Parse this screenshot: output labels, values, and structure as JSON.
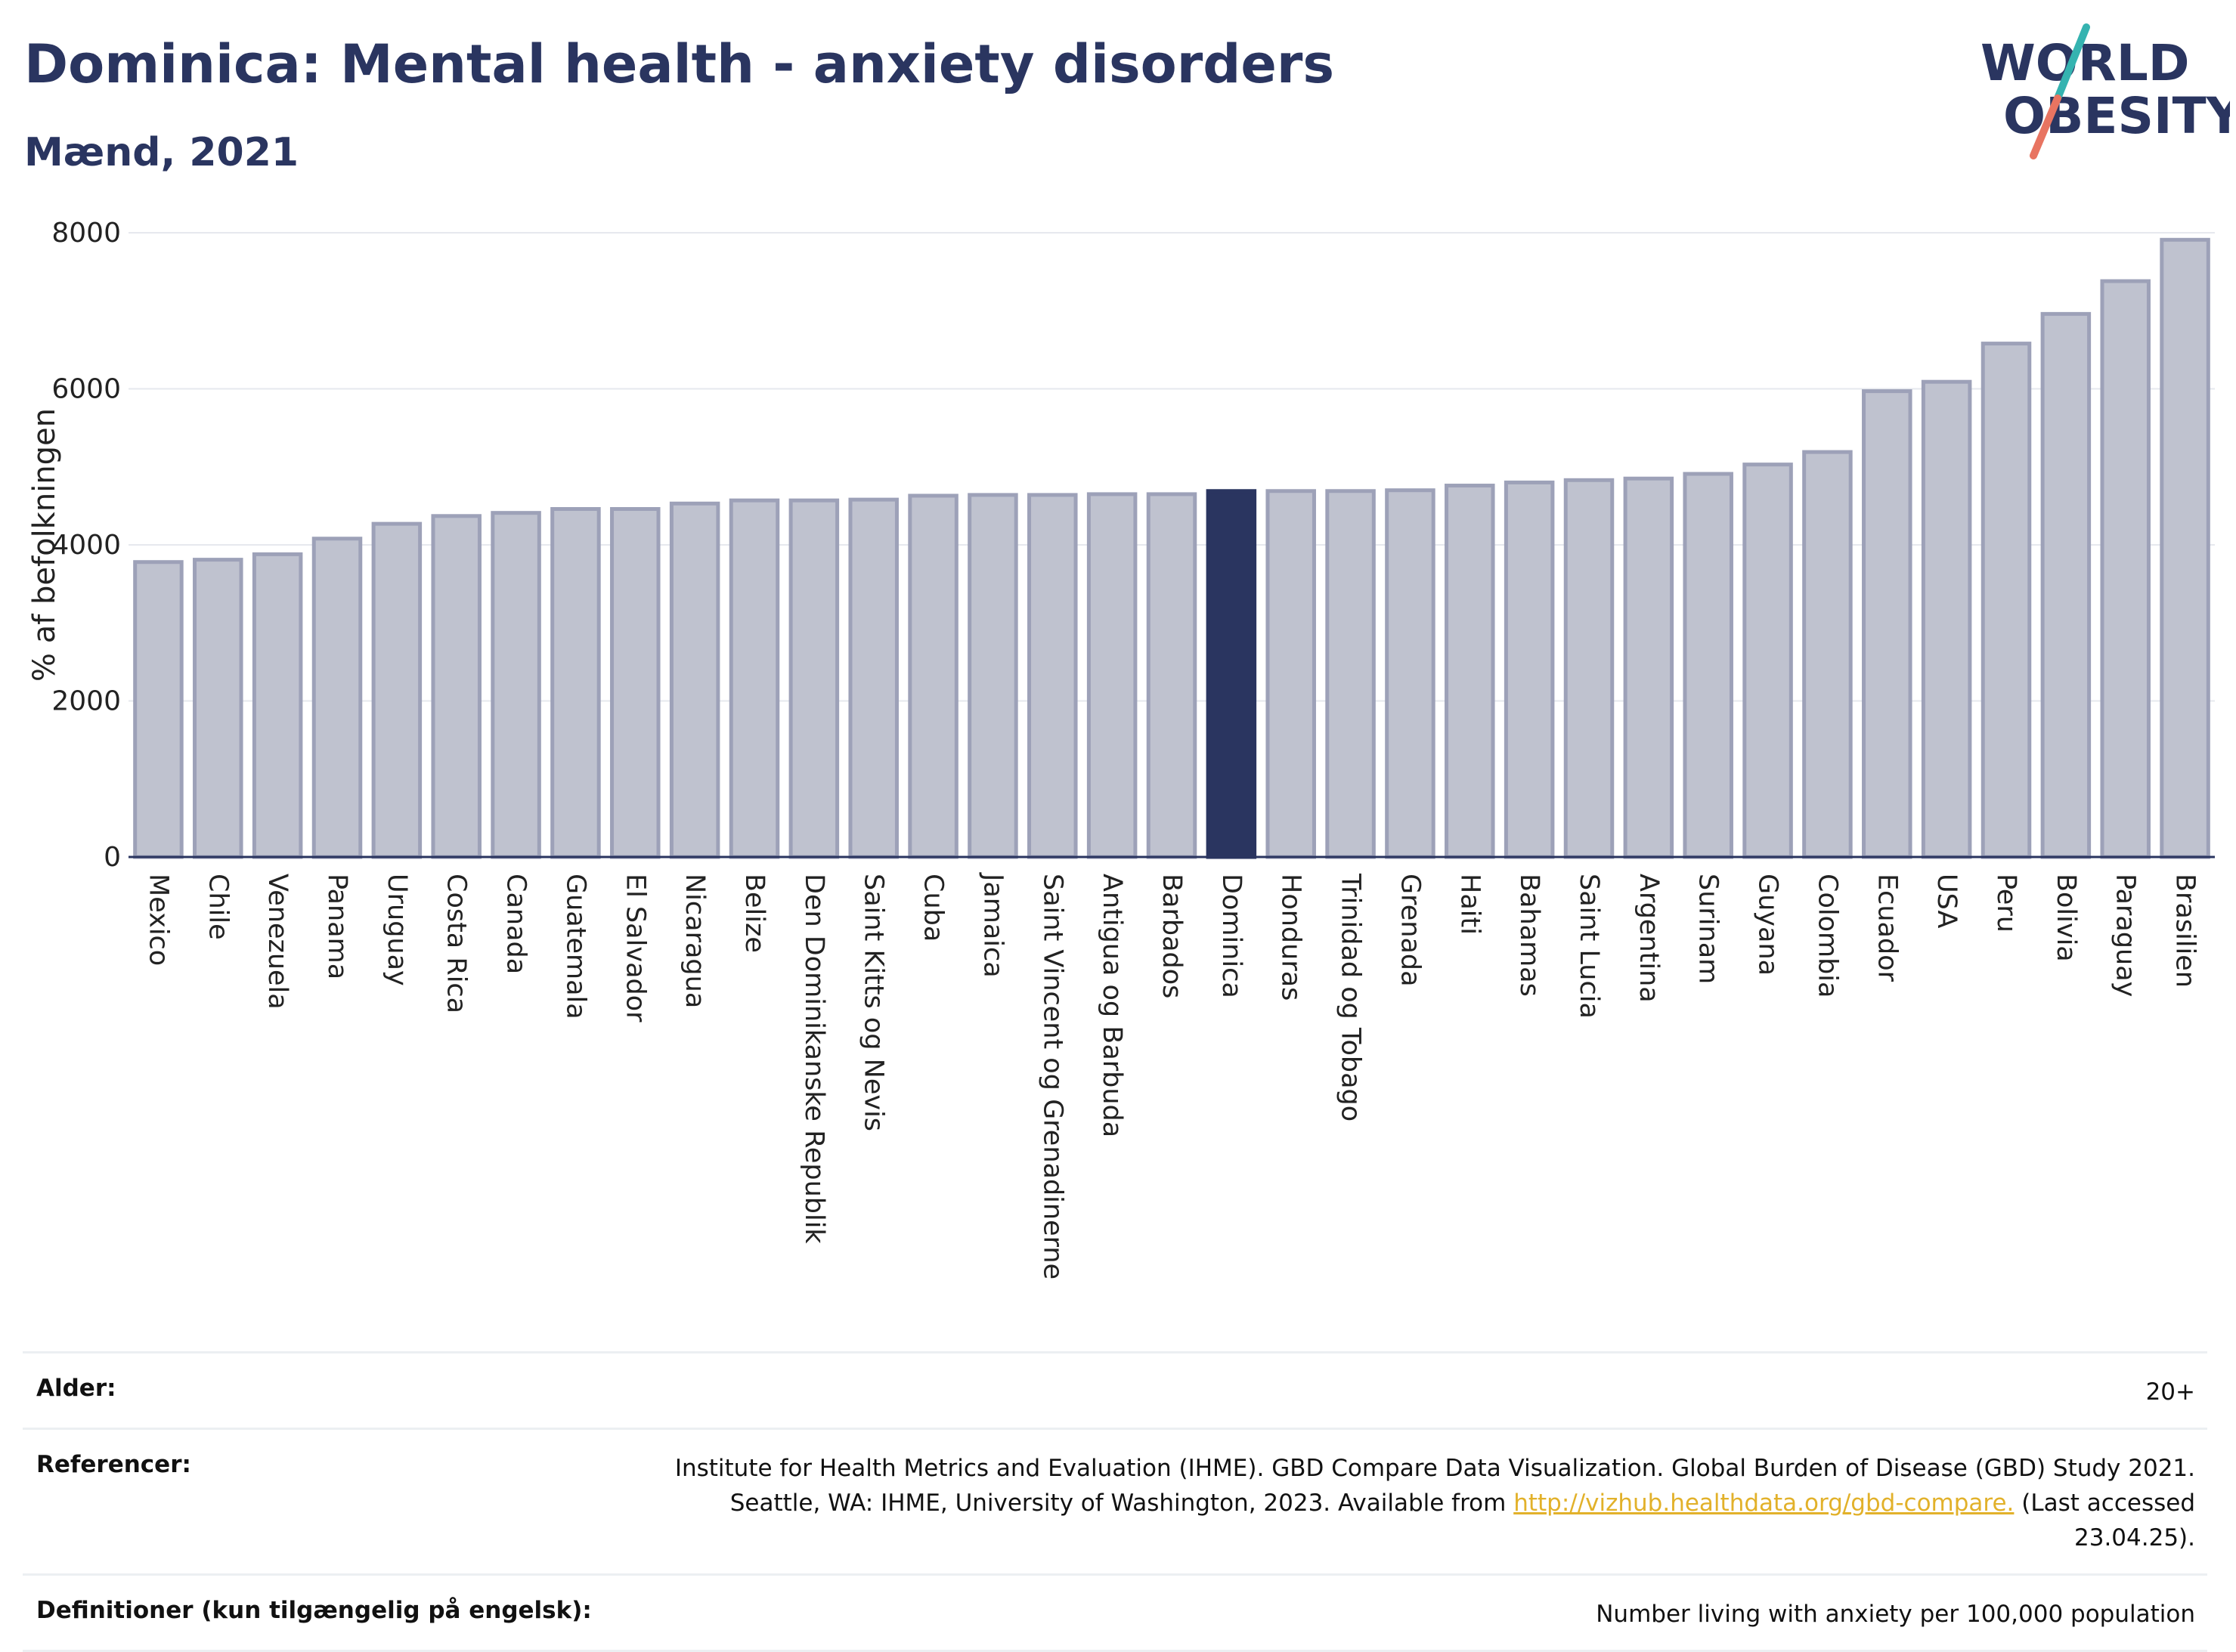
{
  "header": {
    "title": "Dominica: Mental health - anxiety disorders",
    "subtitle": "Mænd, 2021"
  },
  "logo": {
    "line1": "WORLD",
    "line2": "OBESITY",
    "colors": {
      "text": "#2a3560",
      "accent_teal": "#35b3b0",
      "accent_coral": "#e87461"
    }
  },
  "chart_data": {
    "type": "bar",
    "title": "",
    "xlabel": "",
    "ylabel": "% af befolkningen",
    "ylim": [
      0,
      8000
    ],
    "yticks": [
      0,
      2000,
      4000,
      6000,
      8000
    ],
    "grid": true,
    "highlight": "Dominica",
    "colors": {
      "bar": "#bfc2cf",
      "bar_edge": "#9da1b8",
      "highlight": "#2a3560"
    },
    "categories": [
      "Mexico",
      "Chile",
      "Venezuela",
      "Panama",
      "Uruguay",
      "Costa Rica",
      "Canada",
      "Guatemala",
      "El Salvador",
      "Nicaragua",
      "Belize",
      "Den Dominikanske Republik",
      "Saint Kitts og Nevis",
      "Cuba",
      "Jamaica",
      "Saint Vincent og Grenadinerne",
      "Antigua og Barbuda",
      "Barbados",
      "Dominica",
      "Honduras",
      "Trinidad og Tobago",
      "Grenada",
      "Haiti",
      "Bahamas",
      "Saint Lucia",
      "Argentina",
      "Surinam",
      "Guyana",
      "Colombia",
      "Ecuador",
      "USA",
      "Peru",
      "Bolivia",
      "Paraguay",
      "Brasilien"
    ],
    "values": [
      3780,
      3810,
      3880,
      4080,
      4270,
      4370,
      4410,
      4460,
      4460,
      4530,
      4570,
      4570,
      4580,
      4630,
      4640,
      4640,
      4650,
      4650,
      4690,
      4690,
      4690,
      4700,
      4760,
      4800,
      4830,
      4850,
      4910,
      5030,
      5190,
      5970,
      6090,
      6580,
      6960,
      7380,
      7910
    ]
  },
  "info": {
    "age": {
      "label": "Alder:",
      "value": "20+"
    },
    "references": {
      "label": "Referencer:",
      "line1": "Institute for Health Metrics and Evaluation (IHME). GBD Compare Data Visualization. Global Burden of Disease (GBD) Study 2021.",
      "line2_pre": "Seattle, WA: IHME, University of Washington, 2023. Available from",
      "link": "http://vizhub.healthdata.org/gbd-compare.",
      "line2_post": "(Last accessed",
      "line3": "23.04.25)."
    },
    "definitions": {
      "label": "Definitioner (kun tilgængelig på engelsk):",
      "value": "Number living with anxiety per 100,000 population"
    }
  }
}
